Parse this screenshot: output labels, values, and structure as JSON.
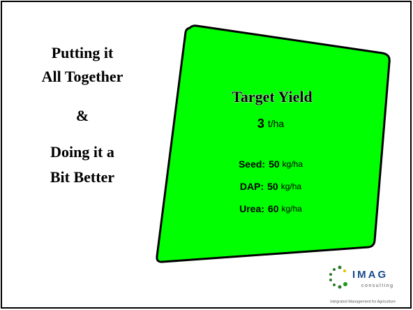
{
  "heading": {
    "lines": [
      "Putting it",
      "All Together",
      "&",
      "Doing it a",
      "Bit Better"
    ]
  },
  "panel": {
    "title": "Target Yield",
    "yield": {
      "value": 3,
      "unit": "t/ha"
    },
    "inputs": [
      {
        "label": "Seed:",
        "value": 50,
        "unit": "kg/ha"
      },
      {
        "label": "DAP:",
        "value": 50,
        "unit": "kg/ha"
      },
      {
        "label": "Urea:",
        "value": 60,
        "unit": "kg/ha"
      }
    ]
  },
  "logo": {
    "name": "IMAG",
    "sub": "consulting",
    "tagline": "Integrated Management for Agriculture"
  }
}
